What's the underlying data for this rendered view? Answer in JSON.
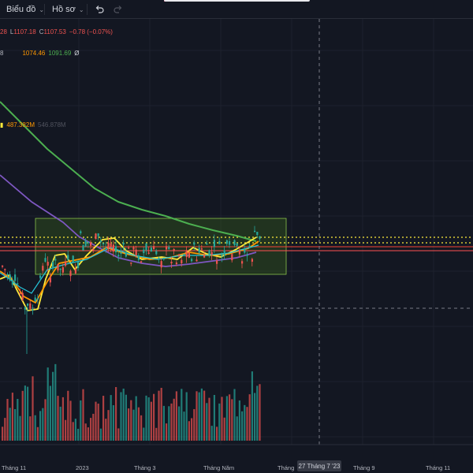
{
  "toolbar": {
    "chart_menu_label": "Biểu đồ",
    "profile_menu_label": "Hồ sơ",
    "chevron_glyph": "⌄"
  },
  "legend": {
    "ohlc": {
      "prefix": "28",
      "low_label": "L",
      "low_value": "1107.18",
      "close_label": "C",
      "close_value": "1107.53",
      "change": "−0.78 (−0.07%)"
    },
    "ma": {
      "prefix": "8",
      "ma1": "1074.46",
      "ma2": "1091.69",
      "hidden_icon": "Ø"
    },
    "volume": {
      "value1": "487.382M",
      "value2": "546.878M"
    }
  },
  "time_axis": {
    "labels": [
      "Tháng 11",
      "2023",
      "Tháng 3",
      "Tháng Năm",
      "Tháng",
      "Tháng 9",
      "Tháng 11"
    ],
    "crosshair_label": "27 Tháng 7 '23"
  },
  "colors": {
    "background": "#131722",
    "up": "#26a69a",
    "down": "#ef5350",
    "ma_green": "#4caf50",
    "ma_purple": "#7e57c2",
    "ma_yellow": "#ffeb3b",
    "ma_orange": "#ff9800",
    "box_fill": "#2e4a1e"
  }
}
